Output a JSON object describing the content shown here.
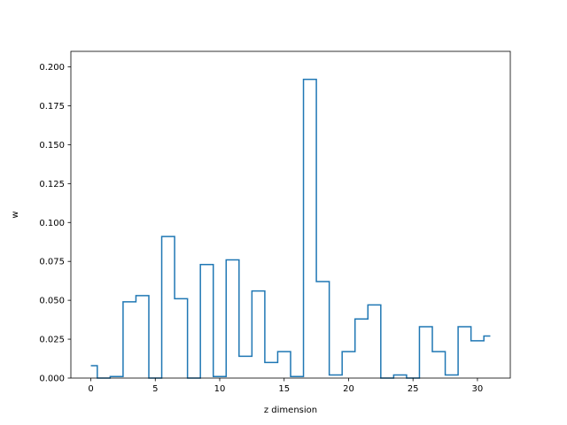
{
  "chart_data": {
    "type": "line",
    "drawstyle": "steps-mid",
    "title": "",
    "xlabel": "z dimension",
    "ylabel": "w",
    "xlim": [
      -1.55,
      32.55
    ],
    "ylim": [
      0,
      0.21
    ],
    "xticks": [
      0,
      5,
      10,
      15,
      20,
      25,
      30
    ],
    "yticks": [
      0.0,
      0.025,
      0.05,
      0.075,
      0.1,
      0.125,
      0.15,
      0.175,
      0.2
    ],
    "ytick_labels": [
      "0.000",
      "0.025",
      "0.050",
      "0.075",
      "0.100",
      "0.125",
      "0.150",
      "0.175",
      "0.200"
    ],
    "grid": false,
    "legend": "none",
    "series": [
      {
        "color": "#1f77b4",
        "x": [
          0,
          1,
          2,
          3,
          4,
          5,
          6,
          7,
          8,
          9,
          10,
          11,
          12,
          13,
          14,
          15,
          16,
          17,
          18,
          19,
          20,
          21,
          22,
          23,
          24,
          25,
          26,
          27,
          28,
          29,
          30,
          31
        ],
        "y": [
          0.008,
          0.0,
          0.001,
          0.049,
          0.053,
          0.0,
          0.091,
          0.051,
          0.0,
          0.073,
          0.001,
          0.076,
          0.014,
          0.056,
          0.01,
          0.017,
          0.001,
          0.192,
          0.062,
          0.002,
          0.017,
          0.038,
          0.047,
          0.0,
          0.002,
          0.0,
          0.033,
          0.017,
          0.002,
          0.033,
          0.024,
          0.027
        ]
      }
    ]
  }
}
